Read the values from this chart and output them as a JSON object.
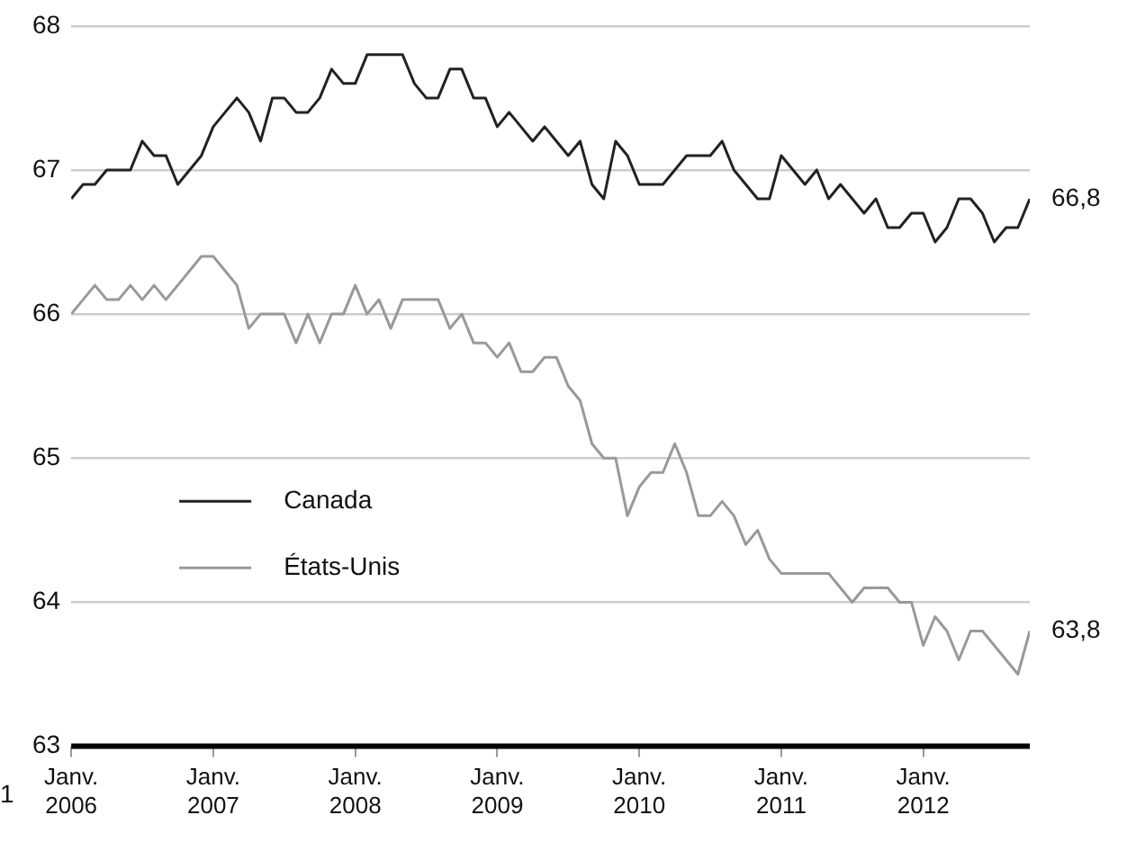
{
  "chart_data": {
    "type": "line",
    "x": [
      "2006-01",
      "2006-02",
      "2006-03",
      "2006-04",
      "2006-05",
      "2006-06",
      "2006-07",
      "2006-08",
      "2006-09",
      "2006-10",
      "2006-11",
      "2006-12",
      "2007-01",
      "2007-02",
      "2007-03",
      "2007-04",
      "2007-05",
      "2007-06",
      "2007-07",
      "2007-08",
      "2007-09",
      "2007-10",
      "2007-11",
      "2007-12",
      "2008-01",
      "2008-02",
      "2008-03",
      "2008-04",
      "2008-05",
      "2008-06",
      "2008-07",
      "2008-08",
      "2008-09",
      "2008-10",
      "2008-11",
      "2008-12",
      "2009-01",
      "2009-02",
      "2009-03",
      "2009-04",
      "2009-05",
      "2009-06",
      "2009-07",
      "2009-08",
      "2009-09",
      "2009-10",
      "2009-11",
      "2009-12",
      "2010-01",
      "2010-02",
      "2010-03",
      "2010-04",
      "2010-05",
      "2010-06",
      "2010-07",
      "2010-08",
      "2010-09",
      "2010-10",
      "2010-11",
      "2010-12",
      "2011-01",
      "2011-02",
      "2011-03",
      "2011-04",
      "2011-05",
      "2011-06",
      "2011-07",
      "2011-08",
      "2011-09",
      "2011-10",
      "2011-11",
      "2011-12",
      "2012-01",
      "2012-02",
      "2012-03",
      "2012-04",
      "2012-05",
      "2012-06",
      "2012-07",
      "2012-08",
      "2012-09",
      "2012-10"
    ],
    "series": [
      {
        "name": "Canada",
        "color": "#222222",
        "values": [
          66.8,
          66.9,
          66.9,
          67.0,
          67.0,
          67.0,
          67.2,
          67.1,
          67.1,
          66.9,
          67.0,
          67.1,
          67.3,
          67.4,
          67.5,
          67.4,
          67.2,
          67.5,
          67.5,
          67.4,
          67.4,
          67.5,
          67.7,
          67.6,
          67.6,
          67.8,
          67.8,
          67.8,
          67.8,
          67.6,
          67.5,
          67.5,
          67.7,
          67.7,
          67.5,
          67.5,
          67.3,
          67.4,
          67.3,
          67.2,
          67.3,
          67.2,
          67.1,
          67.2,
          66.9,
          66.8,
          67.2,
          67.1,
          66.9,
          66.9,
          66.9,
          67.0,
          67.1,
          67.1,
          67.1,
          67.2,
          67.0,
          66.9,
          66.8,
          66.8,
          67.1,
          67.0,
          66.9,
          67.0,
          66.8,
          66.9,
          66.8,
          66.7,
          66.8,
          66.6,
          66.6,
          66.7,
          66.7,
          66.5,
          66.6,
          66.8,
          66.8,
          66.7,
          66.5,
          66.6,
          66.6,
          66.8
        ]
      },
      {
        "name": "États-Unis",
        "color": "#999999",
        "values": [
          66.0,
          66.1,
          66.2,
          66.1,
          66.1,
          66.2,
          66.1,
          66.2,
          66.1,
          66.2,
          66.3,
          66.4,
          66.4,
          66.3,
          66.2,
          65.9,
          66.0,
          66.0,
          66.0,
          65.8,
          66.0,
          65.8,
          66.0,
          66.0,
          66.2,
          66.0,
          66.1,
          65.9,
          66.1,
          66.1,
          66.1,
          66.1,
          65.9,
          66.0,
          65.8,
          65.8,
          65.7,
          65.8,
          65.6,
          65.6,
          65.7,
          65.7,
          65.5,
          65.4,
          65.1,
          65.0,
          65.0,
          64.6,
          64.8,
          64.9,
          64.9,
          65.1,
          64.9,
          64.6,
          64.6,
          64.7,
          64.6,
          64.4,
          64.5,
          64.3,
          64.2,
          64.2,
          64.2,
          64.2,
          64.2,
          64.1,
          64.0,
          64.1,
          64.1,
          64.1,
          64.0,
          64.0,
          63.7,
          63.9,
          63.8,
          63.6,
          63.8,
          63.8,
          63.7,
          63.6,
          63.5,
          63.8
        ]
      }
    ],
    "xlim": [
      "2006-01",
      "2012-10"
    ],
    "xticks": [
      {
        "value": "2006-01",
        "label": "Janv.\n2006"
      },
      {
        "value": "2007-01",
        "label": "Janv.\n2007"
      },
      {
        "value": "2008-01",
        "label": "Janv.\n2008"
      },
      {
        "value": "2009-01",
        "label": "Janv.\n2009"
      },
      {
        "value": "2010-01",
        "label": "Janv.\n2010"
      },
      {
        "value": "2011-01",
        "label": "Janv.\n2011"
      },
      {
        "value": "2012-01",
        "label": "Janv.\n2012"
      }
    ],
    "ylim": [
      63,
      68
    ],
    "yticks": [
      63,
      64,
      65,
      66,
      67,
      68
    ],
    "grid": "y",
    "legend": "left",
    "marker": "none",
    "line_style": "solid",
    "annotations": [
      {
        "text": "66,8",
        "x": "2012-10",
        "y": 66.8
      },
      {
        "text": "63,8",
        "x": "2012-10",
        "y": 63.8
      },
      "1"
    ]
  }
}
